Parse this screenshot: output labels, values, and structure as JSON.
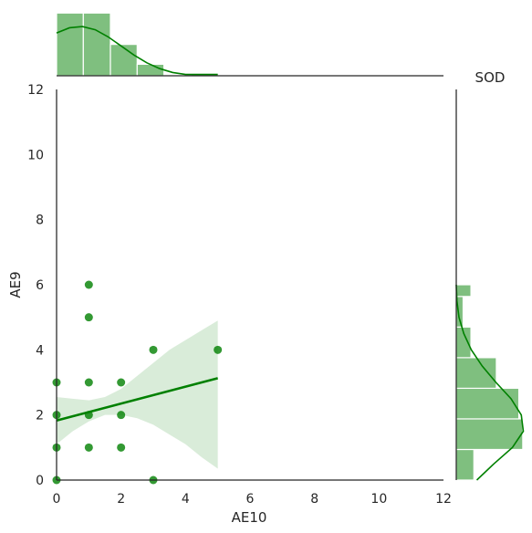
{
  "chart_data": {
    "type": "scatter",
    "title": "",
    "xlabel": "AE10",
    "ylabel": "AE9",
    "corner_label": "SOD",
    "xlim": [
      0,
      12
    ],
    "ylim": [
      0,
      12
    ],
    "xticks": [
      0,
      2,
      4,
      6,
      8,
      10,
      12
    ],
    "yticks": [
      0,
      2,
      4,
      6,
      8,
      10,
      12
    ],
    "grid": false,
    "color": "#008000",
    "points": [
      {
        "x": 0,
        "y": 0
      },
      {
        "x": 0,
        "y": 1
      },
      {
        "x": 0,
        "y": 2
      },
      {
        "x": 0,
        "y": 3
      },
      {
        "x": 1,
        "y": 1
      },
      {
        "x": 1,
        "y": 2
      },
      {
        "x": 1,
        "y": 3
      },
      {
        "x": 1,
        "y": 5
      },
      {
        "x": 1,
        "y": 6
      },
      {
        "x": 2,
        "y": 1
      },
      {
        "x": 2,
        "y": 2
      },
      {
        "x": 2,
        "y": 3
      },
      {
        "x": 3,
        "y": 0
      },
      {
        "x": 3,
        "y": 4
      },
      {
        "x": 5,
        "y": 4
      }
    ],
    "regression": {
      "x": [
        0,
        5
      ],
      "y": [
        1.83,
        3.13
      ],
      "ci_x": [
        0,
        0.5,
        1,
        1.5,
        2,
        2.5,
        3,
        3.5,
        4,
        4.5,
        5
      ],
      "ci_lower": [
        1.1,
        1.5,
        1.8,
        2.0,
        2.0,
        1.9,
        1.7,
        1.4,
        1.1,
        0.7,
        0.35
      ],
      "ci_upper": [
        2.55,
        2.5,
        2.45,
        2.55,
        2.8,
        3.2,
        3.6,
        4.0,
        4.3,
        4.6,
        4.9
      ]
    },
    "marginal_x": {
      "bins": [
        0,
        0.83,
        1.67,
        2.5,
        3.33,
        4.17,
        5.0
      ],
      "counts": [
        6,
        6,
        3,
        1.1,
        0,
        0.15
      ],
      "kde_x": [
        0,
        0.4,
        0.8,
        1.2,
        1.6,
        2.0,
        2.4,
        2.8,
        3.2,
        3.6,
        4.0,
        4.4,
        4.8,
        5.0
      ],
      "kde_y": [
        0.66,
        0.74,
        0.76,
        0.71,
        0.6,
        0.46,
        0.32,
        0.2,
        0.11,
        0.05,
        0.02,
        0.02,
        0.02,
        0.02
      ]
    },
    "marginal_y": {
      "bins": [
        0,
        0.94,
        1.88,
        2.82,
        3.76,
        4.7,
        5.64,
        6.0
      ],
      "counts": [
        1.8,
        6.8,
        6.4,
        4.1,
        1.5,
        0.7,
        1.5
      ],
      "kde_y": [
        0,
        0.5,
        1,
        1.5,
        2,
        2.5,
        3,
        3.5,
        4,
        4.5,
        5,
        5.5,
        6
      ],
      "kde_x": [
        0.3,
        0.55,
        0.82,
        0.98,
        0.95,
        0.8,
        0.58,
        0.38,
        0.22,
        0.11,
        0.04,
        0.01,
        0.0
      ]
    }
  }
}
